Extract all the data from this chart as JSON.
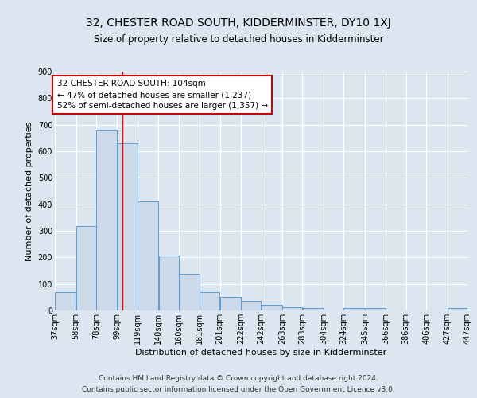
{
  "title": "32, CHESTER ROAD SOUTH, KIDDERMINSTER, DY10 1XJ",
  "subtitle": "Size of property relative to detached houses in Kidderminster",
  "xlabel": "Distribution of detached houses by size in Kidderminster",
  "ylabel": "Number of detached properties",
  "bar_left_edges": [
    37,
    58,
    78,
    99,
    119,
    140,
    160,
    181,
    201,
    222,
    242,
    263,
    283,
    304,
    324,
    345,
    366,
    386,
    406,
    427
  ],
  "bar_widths": [
    21,
    20,
    21,
    20,
    21,
    20,
    21,
    20,
    21,
    20,
    21,
    20,
    21,
    20,
    21,
    21,
    20,
    20,
    21,
    20
  ],
  "bar_heights": [
    70,
    318,
    680,
    630,
    410,
    207,
    137,
    70,
    50,
    35,
    22,
    13,
    10,
    0,
    8,
    8,
    0,
    0,
    0,
    8
  ],
  "xtick_labels": [
    "37sqm",
    "58sqm",
    "78sqm",
    "99sqm",
    "119sqm",
    "140sqm",
    "160sqm",
    "181sqm",
    "201sqm",
    "222sqm",
    "242sqm",
    "263sqm",
    "283sqm",
    "304sqm",
    "324sqm",
    "345sqm",
    "366sqm",
    "386sqm",
    "406sqm",
    "427sqm",
    "447sqm"
  ],
  "xtick_positions": [
    37,
    58,
    78,
    99,
    119,
    140,
    160,
    181,
    201,
    222,
    242,
    263,
    283,
    304,
    324,
    345,
    366,
    386,
    406,
    427,
    447
  ],
  "bar_face_color": "#ccd9e8",
  "bar_edge_color": "#5b9bd5",
  "background_color": "#dce6f0",
  "grid_color": "#ffffff",
  "fig_background_color": "#dce6f0",
  "red_line_x": 104,
  "annotation_text": "32 CHESTER ROAD SOUTH: 104sqm\n← 47% of detached houses are smaller (1,237)\n52% of semi-detached houses are larger (1,357) →",
  "annotation_box_color": "#ffffff",
  "annotation_box_edge_color": "#cc0000",
  "ylim": [
    0,
    900
  ],
  "yticks": [
    0,
    100,
    200,
    300,
    400,
    500,
    600,
    700,
    800,
    900
  ],
  "footer_line1": "Contains HM Land Registry data © Crown copyright and database right 2024.",
  "footer_line2": "Contains public sector information licensed under the Open Government Licence v3.0.",
  "title_fontsize": 10,
  "subtitle_fontsize": 8.5,
  "axis_label_fontsize": 8,
  "tick_fontsize": 7,
  "annotation_fontsize": 7.5,
  "footer_fontsize": 6.5
}
